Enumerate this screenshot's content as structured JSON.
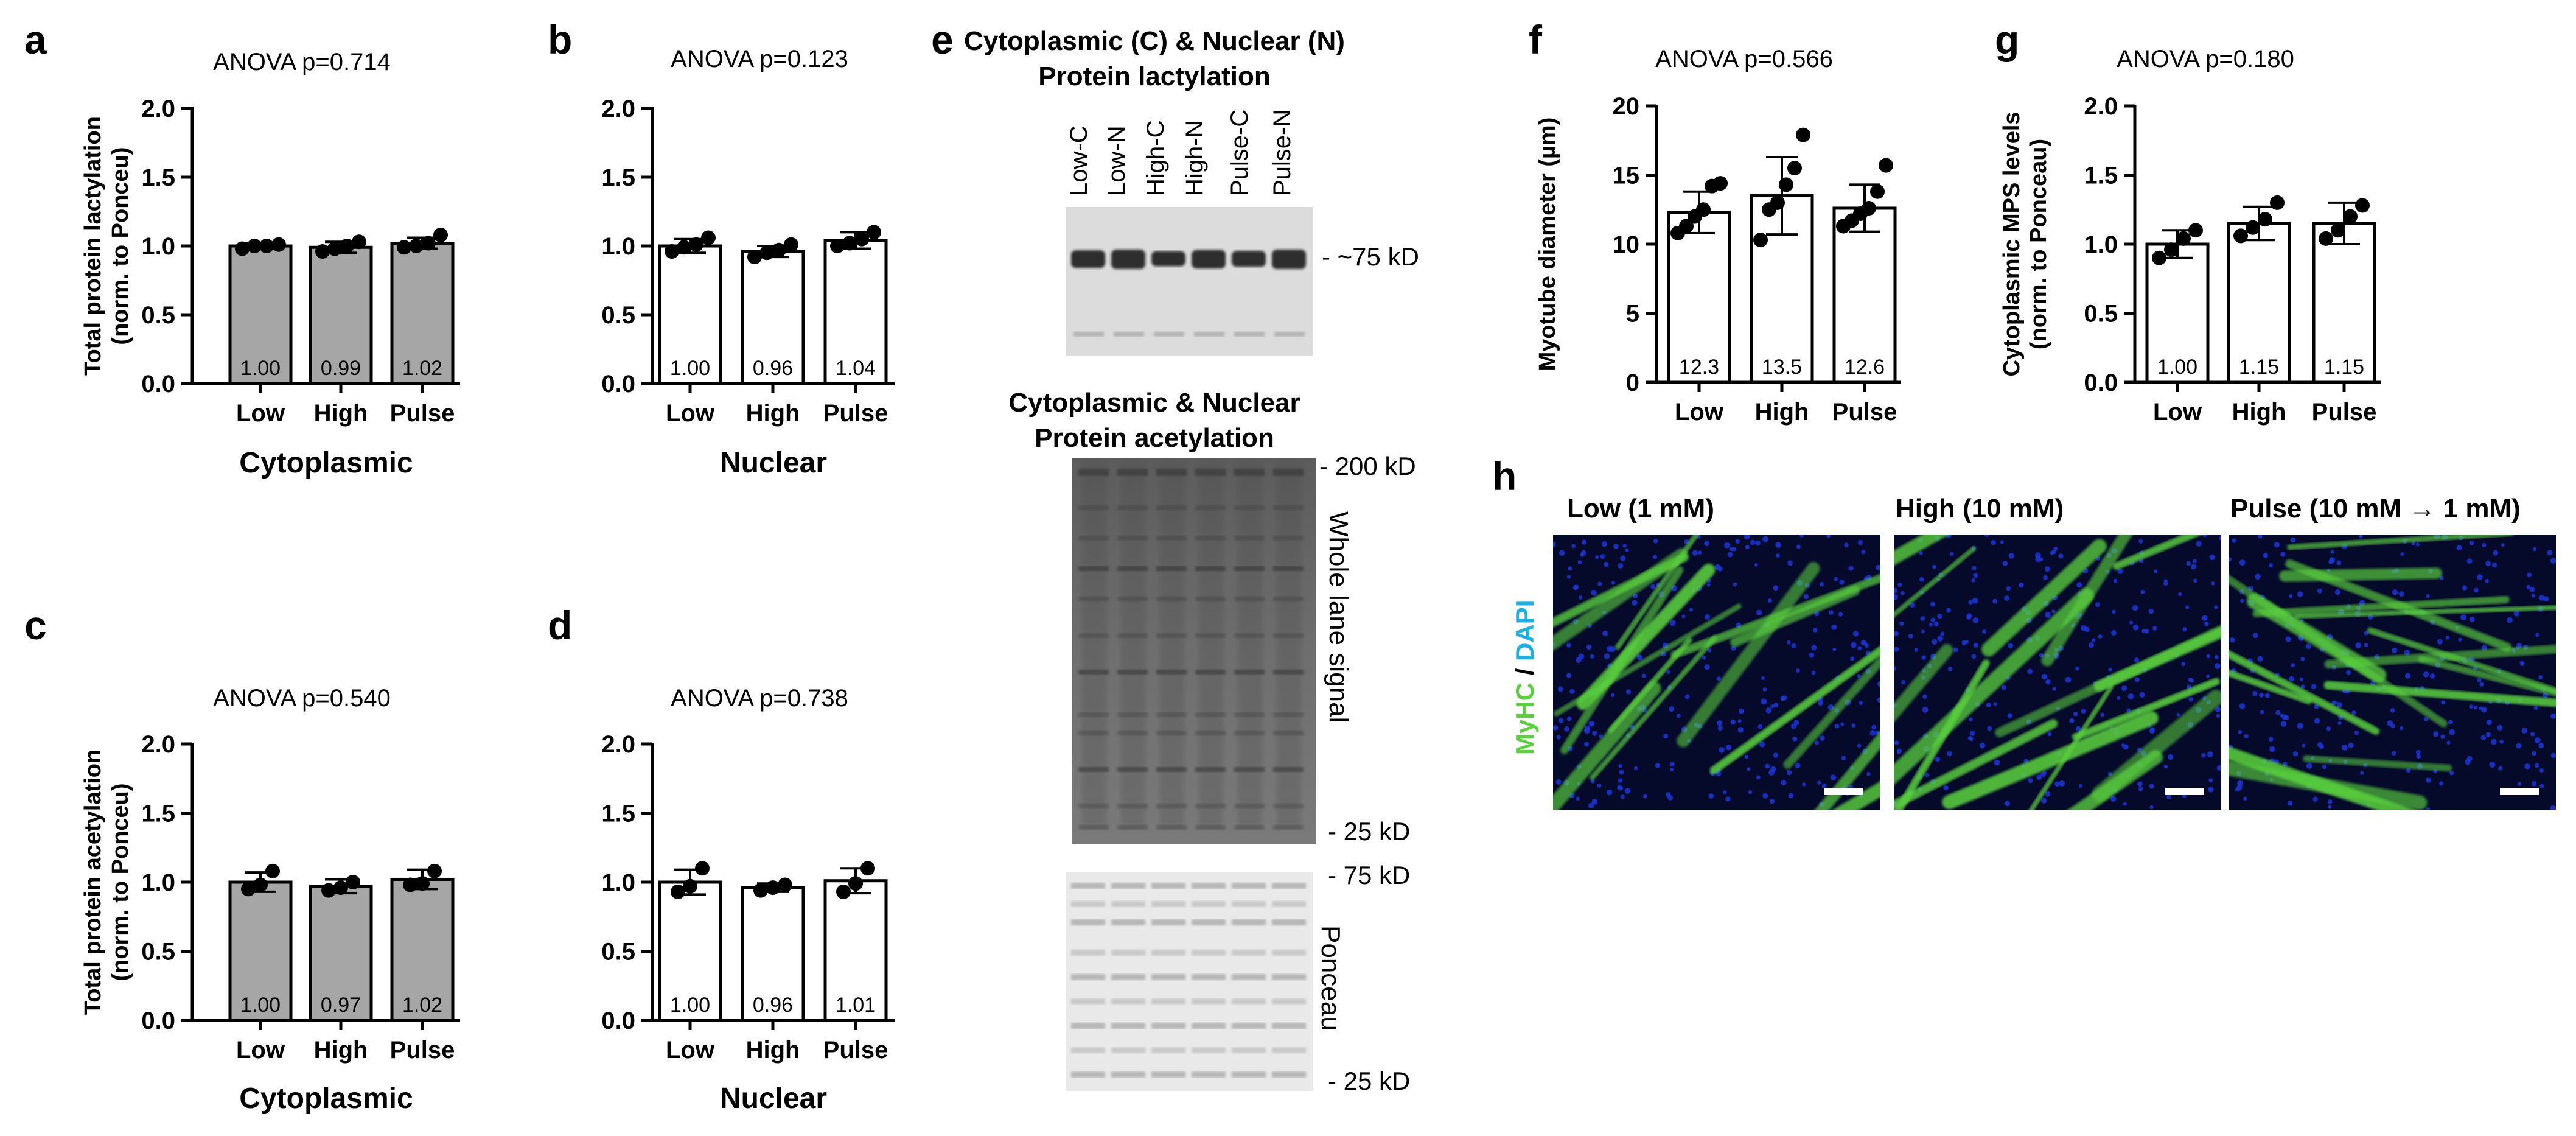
{
  "panels": {
    "a": {
      "label": "a",
      "anova": "ANOVA p=0.714"
    },
    "b": {
      "label": "b",
      "anova": "ANOVA p=0.123"
    },
    "c": {
      "label": "c",
      "anova": "ANOVA p=0.540"
    },
    "d": {
      "label": "d",
      "anova": "ANOVA p=0.738"
    },
    "e": {
      "label": "e"
    },
    "f": {
      "label": "f",
      "anova": "ANOVA p=0.566"
    },
    "g": {
      "label": "g",
      "anova": "ANOVA p=0.180"
    },
    "h": {
      "label": "h"
    }
  },
  "chart_data": [
    {
      "id": "a",
      "type": "bar",
      "categories": [
        "Low",
        "High",
        "Pulse"
      ],
      "values": [
        1.0,
        0.99,
        1.02
      ],
      "value_labels": [
        "1.00",
        "0.99",
        "1.02"
      ],
      "error": [
        0.02,
        0.04,
        0.04
      ],
      "points": [
        [
          0.98,
          1.0,
          1.0,
          1.01
        ],
        [
          0.96,
          0.98,
          1.0,
          1.03
        ],
        [
          0.99,
          1.0,
          1.02,
          1.08
        ]
      ],
      "ylabel_lines": [
        "Total protein lactylation",
        "(norm. to Ponceu)"
      ],
      "xlabel": "Cytoplasmic",
      "ylim": [
        0,
        2.0
      ],
      "yticks": [
        "0.0",
        "0.5",
        "1.0",
        "1.5",
        "2.0"
      ],
      "bar_color": "#a6a6a6"
    },
    {
      "id": "b",
      "type": "bar",
      "categories": [
        "Low",
        "High",
        "Pulse"
      ],
      "values": [
        1.0,
        0.96,
        1.04
      ],
      "value_labels": [
        "1.00",
        "0.96",
        "1.04"
      ],
      "error": [
        0.05,
        0.04,
        0.06
      ],
      "points": [
        [
          0.96,
          0.99,
          1.01,
          1.06
        ],
        [
          0.92,
          0.95,
          0.97,
          1.01
        ],
        [
          1.0,
          1.02,
          1.05,
          1.1
        ]
      ],
      "ylabel_lines": [],
      "xlabel": "Nuclear",
      "ylim": [
        0,
        2.0
      ],
      "yticks": [
        "0.0",
        "0.5",
        "1.0",
        "1.5",
        "2.0"
      ],
      "bar_color": "#ffffff"
    },
    {
      "id": "c",
      "type": "bar",
      "categories": [
        "Low",
        "High",
        "Pulse"
      ],
      "values": [
        1.0,
        0.97,
        1.02
      ],
      "value_labels": [
        "1.00",
        "0.97",
        "1.02"
      ],
      "error": [
        0.07,
        0.05,
        0.07
      ],
      "points": [
        [
          0.95,
          0.98,
          1.08
        ],
        [
          0.94,
          0.96,
          1.0
        ],
        [
          0.98,
          0.99,
          1.08
        ]
      ],
      "ylabel_lines": [
        "Total protein acetylation",
        "(norm. to Ponceu)"
      ],
      "xlabel": "Cytoplasmic",
      "ylim": [
        0,
        2.0
      ],
      "yticks": [
        "0.0",
        "0.5",
        "1.0",
        "1.5",
        "2.0"
      ],
      "bar_color": "#a6a6a6"
    },
    {
      "id": "d",
      "type": "bar",
      "categories": [
        "Low",
        "High",
        "Pulse"
      ],
      "values": [
        1.0,
        0.96,
        1.01
      ],
      "value_labels": [
        "1.00",
        "0.96",
        "1.01"
      ],
      "error": [
        0.09,
        0.03,
        0.09
      ],
      "points": [
        [
          0.93,
          0.97,
          1.1
        ],
        [
          0.94,
          0.96,
          0.98
        ],
        [
          0.93,
          0.99,
          1.1
        ]
      ],
      "ylabel_lines": [],
      "xlabel": "Nuclear",
      "ylim": [
        0,
        2.0
      ],
      "yticks": [
        "0.0",
        "0.5",
        "1.0",
        "1.5",
        "2.0"
      ],
      "bar_color": "#ffffff"
    },
    {
      "id": "f",
      "type": "bar",
      "categories": [
        "Low",
        "High",
        "Pulse"
      ],
      "values": [
        12.3,
        13.5,
        12.6
      ],
      "value_labels": [
        "12.3",
        "13.5",
        "12.6"
      ],
      "error": [
        1.5,
        2.8,
        1.7
      ],
      "points": [
        [
          10.8,
          11.3,
          12.0,
          12.5,
          14.2,
          14.4
        ],
        [
          10.3,
          12.5,
          13.0,
          14.3,
          15.5,
          17.9
        ],
        [
          11.3,
          11.7,
          12.2,
          12.6,
          13.8,
          15.7
        ]
      ],
      "ylabel_lines": [
        "Myotube diameter (µm)"
      ],
      "xlabel": "",
      "ylim": [
        0,
        20
      ],
      "yticks": [
        "0",
        "5",
        "10",
        "15",
        "20"
      ],
      "bar_color": "#ffffff"
    },
    {
      "id": "g",
      "type": "bar",
      "categories": [
        "Low",
        "High",
        "Pulse"
      ],
      "values": [
        1.0,
        1.15,
        1.15
      ],
      "value_labels": [
        "1.00",
        "1.15",
        "1.15"
      ],
      "error": [
        0.1,
        0.12,
        0.15
      ],
      "points": [
        [
          0.9,
          0.96,
          1.04,
          1.1
        ],
        [
          1.06,
          1.12,
          1.18,
          1.3
        ],
        [
          1.04,
          1.1,
          1.2,
          1.28
        ]
      ],
      "ylabel_lines": [
        "Cytoplasmic MPS levels",
        "(norm. to Ponceau)"
      ],
      "xlabel": "",
      "ylim": [
        0,
        2.0
      ],
      "yticks": [
        "0.0",
        "0.5",
        "1.0",
        "1.5",
        "2.0"
      ],
      "bar_color": "#ffffff"
    }
  ],
  "blot": {
    "title1_line1": "Cytoplasmic (C) & Nuclear (N)",
    "title1_line2": "Protein lactylation",
    "lanes": [
      "Low-C",
      "Low-N",
      "High-C",
      "High-N",
      "Pulse-C",
      "Pulse-N"
    ],
    "marker_lact": "- ~75 kD",
    "title2_line1": "Cytoplasmic & Nuclear",
    "title2_line2": "Protein acetylation",
    "marker_200": "- 200 kD",
    "marker_25a": "- 25 kD",
    "whole_lane": "Whole lane signal",
    "marker_75": "- 75 kD",
    "marker_25b": "- 25 kD",
    "ponceau": "Ponceau"
  },
  "micro": {
    "conditions": [
      "Low (1 mM)",
      "High (10 mM)",
      "Pulse (10 mM → 1 mM)"
    ],
    "stain_myhc": "MyHC",
    "stain_sep": " / ",
    "stain_dapi": "DAPI",
    "myhc_color": "#5ad13c",
    "dapi_color": "#1ab2e6"
  }
}
